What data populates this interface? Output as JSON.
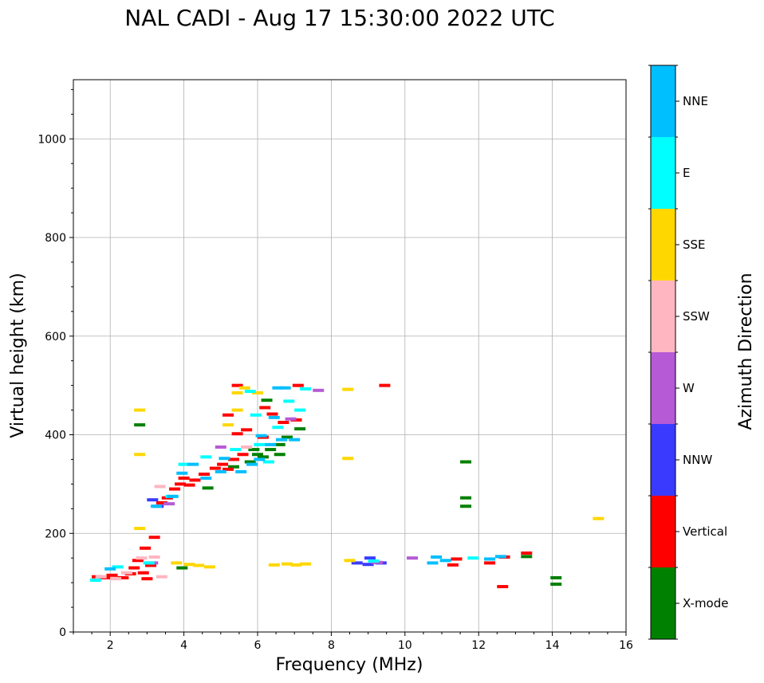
{
  "chart_data": {
    "type": "scatter",
    "title": "NAL CADI - Aug 17 15:30:00 2022 UTC",
    "xlabel": "Frequency (MHz)",
    "ylabel": "Virtual height (km)",
    "xlim": [
      1,
      16
    ],
    "ylim": [
      0,
      1120
    ],
    "xticks": [
      2,
      4,
      6,
      8,
      10,
      12,
      14,
      16
    ],
    "yticks": [
      0,
      200,
      400,
      600,
      800,
      1000
    ],
    "grid": true,
    "colorbar": {
      "label": "Azimuth Direction",
      "categories": [
        {
          "name": "X-mode",
          "color": "#008000"
        },
        {
          "name": "Vertical",
          "color": "#ff0000"
        },
        {
          "name": "NNW",
          "color": "#3a3aff"
        },
        {
          "name": "W",
          "color": "#b65ad6"
        },
        {
          "name": "SSW",
          "color": "#ffb6c1"
        },
        {
          "name": "SSE",
          "color": "#ffd700"
        },
        {
          "name": "E",
          "color": "#00ffff"
        },
        {
          "name": "NNE",
          "color": "#00bfff"
        }
      ]
    },
    "series": [
      {
        "name": "X-mode",
        "points": [
          [
            3.95,
            130
          ],
          [
            4.65,
            292
          ],
          [
            5.35,
            335
          ],
          [
            5.8,
            345
          ],
          [
            5.9,
            370
          ],
          [
            6.15,
            355
          ],
          [
            6.35,
            370
          ],
          [
            6.6,
            380
          ],
          [
            6.6,
            360
          ],
          [
            6.8,
            395
          ],
          [
            7.15,
            412
          ],
          [
            6.25,
            470
          ],
          [
            11.65,
            345
          ],
          [
            11.65,
            272
          ],
          [
            11.65,
            255
          ],
          [
            13.3,
            153
          ],
          [
            14.1,
            110
          ],
          [
            14.1,
            97
          ],
          [
            2.8,
            420
          ],
          [
            6.0,
            360
          ]
        ]
      },
      {
        "name": "Vertical",
        "points": [
          [
            1.65,
            112
          ],
          [
            1.85,
            110
          ],
          [
            2.05,
            115
          ],
          [
            2.35,
            110
          ],
          [
            2.55,
            118
          ],
          [
            2.65,
            130
          ],
          [
            2.75,
            145
          ],
          [
            2.9,
            120
          ],
          [
            3.0,
            108
          ],
          [
            3.1,
            135
          ],
          [
            3.2,
            192
          ],
          [
            2.95,
            170
          ],
          [
            3.4,
            262
          ],
          [
            3.55,
            272
          ],
          [
            3.75,
            290
          ],
          [
            3.9,
            300
          ],
          [
            4.0,
            312
          ],
          [
            4.15,
            298
          ],
          [
            4.3,
            308
          ],
          [
            4.55,
            320
          ],
          [
            4.85,
            332
          ],
          [
            5.05,
            340
          ],
          [
            5.2,
            330
          ],
          [
            5.35,
            350
          ],
          [
            5.6,
            360
          ],
          [
            5.45,
            402
          ],
          [
            5.7,
            410
          ],
          [
            5.2,
            440
          ],
          [
            5.45,
            500
          ],
          [
            6.2,
            455
          ],
          [
            6.4,
            442
          ],
          [
            6.7,
            425
          ],
          [
            7.05,
            430
          ],
          [
            7.1,
            500
          ],
          [
            9.45,
            500
          ],
          [
            11.4,
            148
          ],
          [
            11.3,
            136
          ],
          [
            12.3,
            140
          ],
          [
            12.7,
            152
          ],
          [
            12.65,
            92
          ],
          [
            13.3,
            160
          ],
          [
            6.15,
            395
          ]
        ]
      },
      {
        "name": "NNW",
        "points": [
          [
            3.3,
            255
          ],
          [
            8.7,
            140
          ],
          [
            9.0,
            137
          ],
          [
            9.35,
            140
          ],
          [
            9.05,
            150
          ],
          [
            3.15,
            268
          ]
        ]
      },
      {
        "name": "W",
        "points": [
          [
            9.25,
            141
          ],
          [
            10.2,
            150
          ],
          [
            3.15,
            140
          ],
          [
            5.0,
            375
          ],
          [
            7.65,
            490
          ],
          [
            6.9,
            432
          ],
          [
            3.6,
            260
          ]
        ]
      },
      {
        "name": "SSW",
        "points": [
          [
            1.75,
            112
          ],
          [
            2.15,
            108
          ],
          [
            2.45,
            120
          ],
          [
            2.85,
            150
          ],
          [
            3.2,
            152
          ],
          [
            3.4,
            112
          ],
          [
            3.35,
            295
          ],
          [
            5.7,
            375
          ]
        ]
      },
      {
        "name": "SSE",
        "points": [
          [
            2.8,
            450
          ],
          [
            2.8,
            360
          ],
          [
            2.8,
            210
          ],
          [
            4.15,
            137
          ],
          [
            4.4,
            135
          ],
          [
            4.7,
            132
          ],
          [
            6.45,
            136
          ],
          [
            6.8,
            138
          ],
          [
            7.05,
            136
          ],
          [
            7.3,
            138
          ],
          [
            8.5,
            145
          ],
          [
            8.45,
            492
          ],
          [
            8.45,
            352
          ],
          [
            15.25,
            230
          ],
          [
            5.45,
            485
          ],
          [
            5.65,
            495
          ],
          [
            5.45,
            450
          ],
          [
            5.2,
            420
          ],
          [
            3.8,
            140
          ],
          [
            6.0,
            485
          ]
        ]
      },
      {
        "name": "E",
        "points": [
          [
            1.6,
            105
          ],
          [
            2.2,
            132
          ],
          [
            3.05,
            140
          ],
          [
            3.65,
            275
          ],
          [
            4.0,
            340
          ],
          [
            4.6,
            355
          ],
          [
            5.4,
            370
          ],
          [
            5.8,
            488
          ],
          [
            6.05,
            380
          ],
          [
            6.3,
            345
          ],
          [
            6.55,
            415
          ],
          [
            7.15,
            450
          ],
          [
            7.3,
            493
          ],
          [
            6.85,
            468
          ],
          [
            5.95,
            440
          ],
          [
            9.15,
            144
          ],
          [
            11.85,
            150
          ]
        ]
      },
      {
        "name": "NNE",
        "points": [
          [
            2.0,
            128
          ],
          [
            3.25,
            255
          ],
          [
            3.7,
            275
          ],
          [
            3.95,
            322
          ],
          [
            4.25,
            340
          ],
          [
            4.6,
            312
          ],
          [
            5.0,
            325
          ],
          [
            5.55,
            325
          ],
          [
            5.85,
            340
          ],
          [
            6.05,
            350
          ],
          [
            6.35,
            380
          ],
          [
            6.65,
            390
          ],
          [
            6.75,
            495
          ],
          [
            6.45,
            435
          ],
          [
            7.0,
            390
          ],
          [
            6.1,
            398
          ],
          [
            10.75,
            140
          ],
          [
            10.85,
            152
          ],
          [
            11.1,
            145
          ],
          [
            12.3,
            148
          ],
          [
            12.6,
            153
          ],
          [
            5.1,
            352
          ],
          [
            6.55,
            495
          ]
        ]
      }
    ]
  }
}
